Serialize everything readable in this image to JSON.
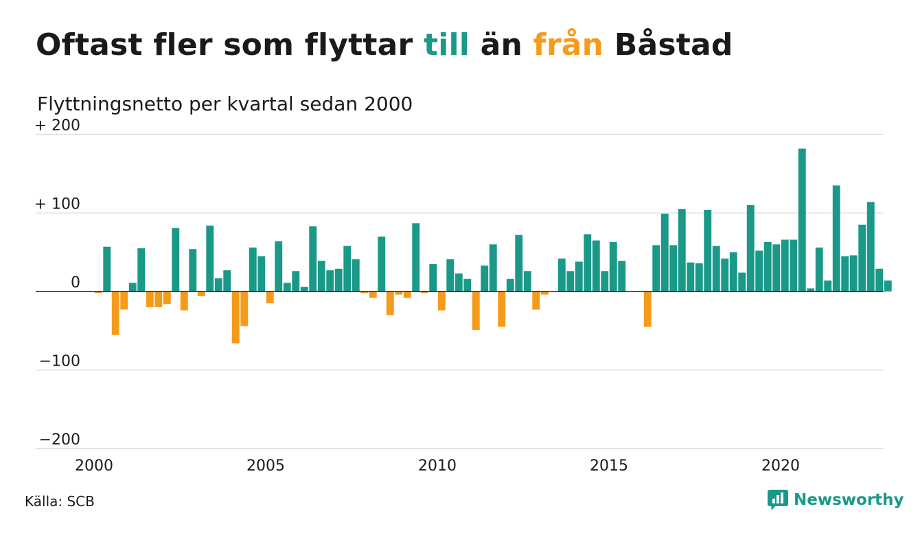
{
  "title": {
    "part1": "Oftast fler som flyttar ",
    "word_in": "till",
    "part2": " än ",
    "word_out": "från",
    "part3": " Båstad"
  },
  "subtitle": "Flyttningsnetto per kvartal sedan 2000",
  "source": "Källa: SCB",
  "brand": {
    "name": "Newsworthy",
    "icon": "newsworthy-logo-icon"
  },
  "colors": {
    "positive": "#1a9988",
    "negative": "#f59b1c",
    "grid": "#dcdcdc",
    "text": "#1a1a1a"
  },
  "chart_data": {
    "type": "bar",
    "x_start": 2000,
    "x_step": 0.25,
    "xlim": [
      2000,
      2023
    ],
    "xticks": [
      2000,
      2005,
      2010,
      2015,
      2020
    ],
    "xtick_labels": [
      "2000",
      "2005",
      "2010",
      "2015",
      "2020"
    ],
    "ylim": [
      -200,
      200
    ],
    "yticks": [
      -200,
      -100,
      0,
      100,
      200
    ],
    "ytick_labels": [
      "−200",
      "−100",
      "0",
      "+ 100",
      "+ 200"
    ],
    "grid": true,
    "values": [
      -2,
      57,
      -55,
      -23,
      11,
      55,
      -20,
      -20,
      -16,
      81,
      -24,
      54,
      -6,
      84,
      17,
      27,
      -66,
      -44,
      56,
      45,
      -15,
      64,
      11,
      26,
      6,
      83,
      39,
      27,
      29,
      58,
      41,
      -2,
      -8,
      70,
      -30,
      -4,
      -8,
      87,
      -2,
      35,
      -24,
      41,
      23,
      16,
      -49,
      33,
      60,
      -45,
      16,
      72,
      26,
      -23,
      -4,
      0,
      42,
      26,
      38,
      73,
      65,
      26,
      63,
      39,
      0,
      0,
      -45,
      59,
      99,
      59,
      105,
      37,
      36,
      104,
      58,
      42,
      50,
      24,
      110,
      52,
      63,
      60,
      66,
      66,
      182,
      4,
      56,
      14,
      135,
      45,
      46,
      85,
      114,
      29,
      14
    ]
  }
}
